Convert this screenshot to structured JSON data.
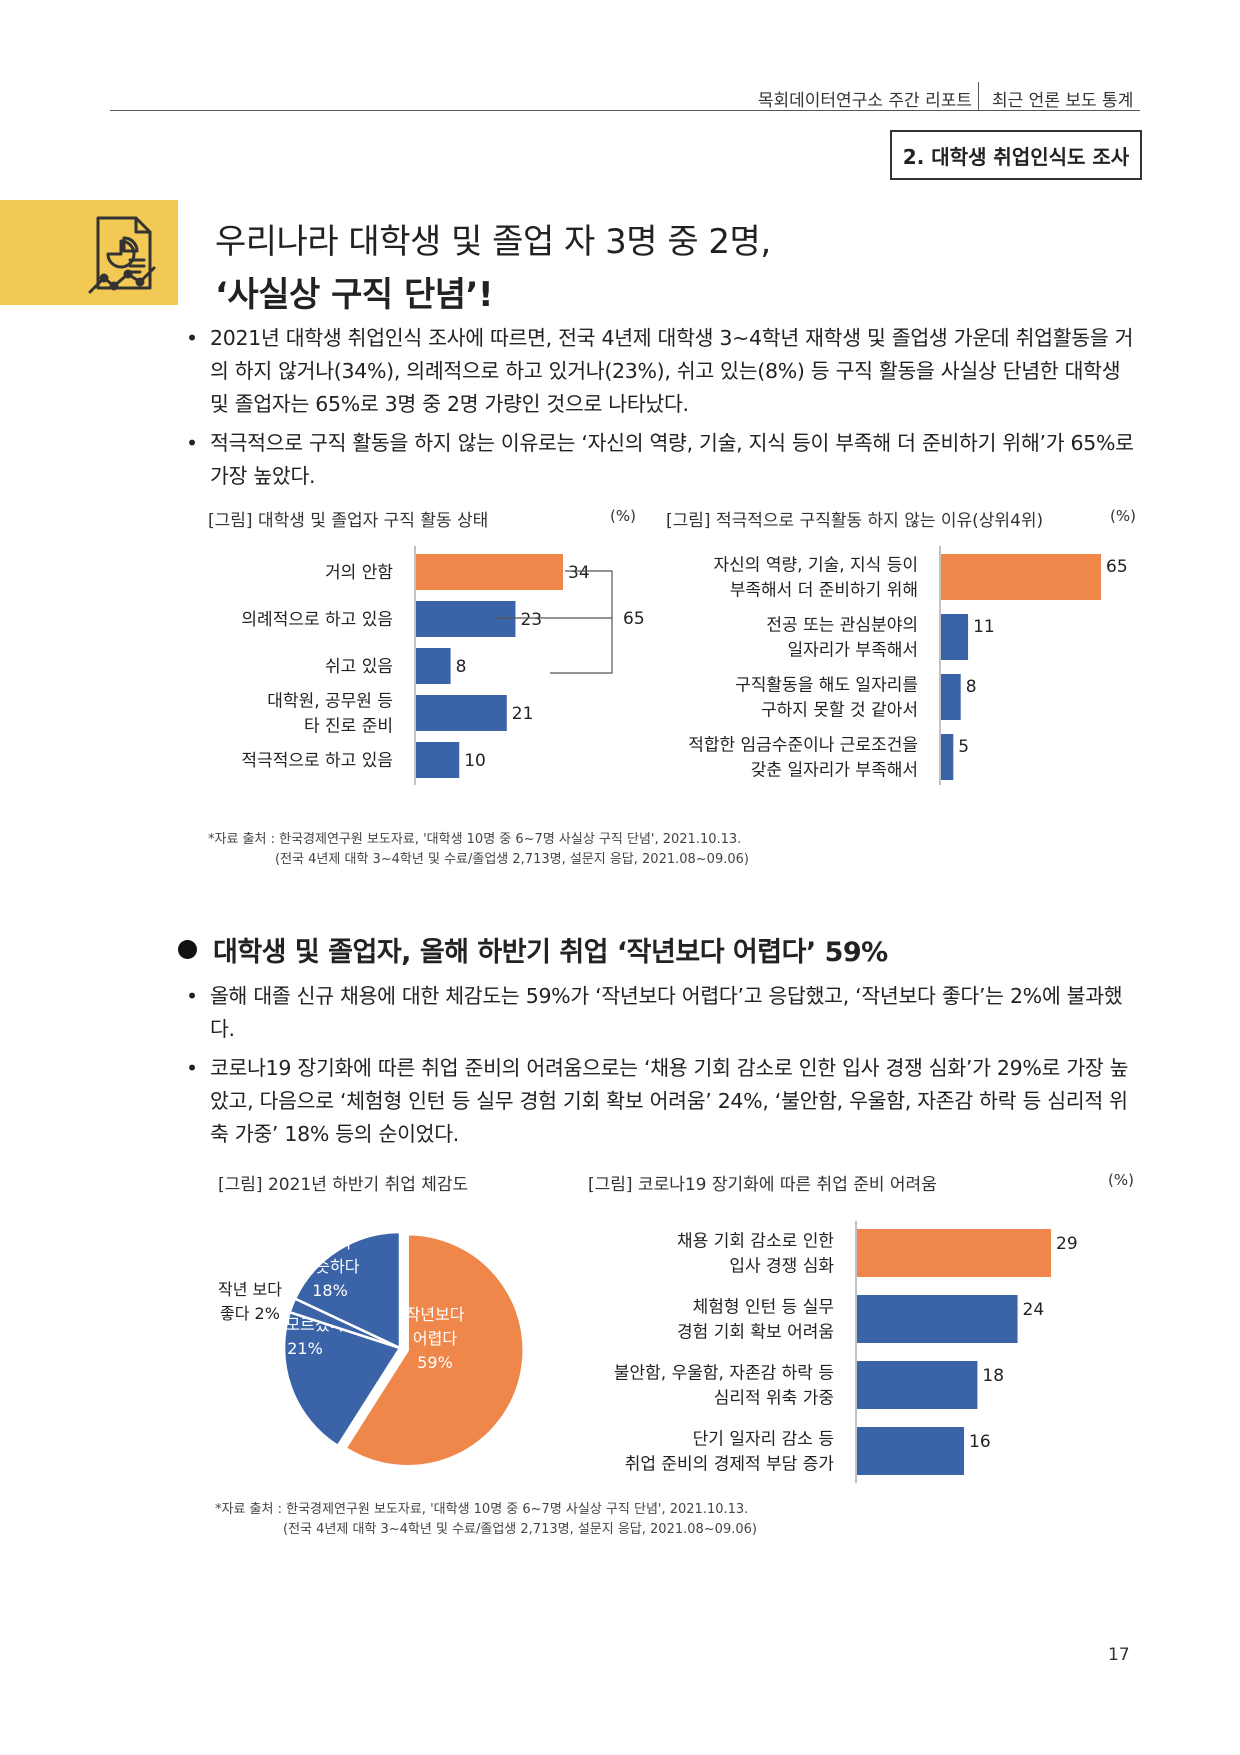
{
  "header": {
    "org": "목회데이터연구소 주간 리포트",
    "section": "최근 언론 보도 통계",
    "box_label": "2. 대학생 취업인식도 조사"
  },
  "title": {
    "icon": "chart-report-icon",
    "line1": "우리나라 대학생 및 졸업 자 3명 중 2명,",
    "line2": "‘사실상 구직 단념’!"
  },
  "bullets1": [
    "2021년 대학생 취업인식 조사에 따르면, 전국 4년제 대학생 3~4학년 재학생 및 졸업생 가운데 취업활동을 거의 하지 않거나(34%), 의례적으로 하고 있거나(23%), 쉬고 있는(8%) 등 구직 활동을 사실상 단념한 대학생 및 졸업자는 65%로 3명 중 2명 가량인 것으로 나타났다.",
    "적극적으로 구직 활동을 하지 않는 이유로는 ‘자신의 역량, 기술, 지식 등이 부족해 더 준비하기 위해’가 65%로 가장 높았다."
  ],
  "chart1": {
    "title": "[그림] 대학생 및 졸업자 구직 활동 상태",
    "unit": "(%)",
    "bracket_total": "65"
  },
  "chart2": {
    "title": "[그림] 적극적으로 구직활동 하지 않는 이유(상위4위)",
    "unit": "(%)"
  },
  "source1": {
    "line1": "*자료 출처 : 한국경제연구원 보도자료, '대학생 10명 중 6~7명 사실상 구직 단념', 2021.10.13.",
    "line2": "(전국 4년제 대학 3~4학년 및 수료/졸업생 2,713명, 설문지 응답, 2021.08~09.06)"
  },
  "subhead": "대학생 및 졸업자, 올해 하반기 취업 ‘작년보다 어렵다’ 59%",
  "bullets2": [
    "올해 대졸 신규 채용에 대한 체감도는 59%가 ‘작년보다 어렵다’고 응답했고, ‘작년보다 좋다’는 2%에 불과했다.",
    "코로나19 장기화에 따른 취업 준비의 어려움으로는 ‘채용 기회 감소로 인한 입사 경쟁 심화’가 29%로 가장 높았고, 다음으로 ‘체험형 인턴 등 실무 경험 기회 확보 어려움’ 24%, ‘불안함, 우울함, 자존감 하락 등 심리적 위축 가중’ 18% 등의 순이었다."
  ],
  "chart3": {
    "title": "[그림] 2021년 하반기 취업 체감도"
  },
  "chart4": {
    "title": "[그림] 코로나19 장기화에 따른 취업 준비 어려움",
    "unit": "(%)"
  },
  "source2": {
    "line1": "*자료 출처 : 한국경제연구원 보도자료, '대학생 10명 중 6~7명 사실상 구직 단념', 2021.10.13.",
    "line2": "(전국 4년제 대학 3~4학년 및 수료/졸업생 2,713명, 설문지 응답, 2021.08~09.06)"
  },
  "page_number": "17",
  "colors": {
    "orange": "#f0874a",
    "blue": "#3b64a8",
    "band": "#f3c955"
  },
  "chart_data": [
    {
      "type": "bar",
      "orientation": "horizontal",
      "title": "[그림] 대학생 및 졸업자 구직 활동 상태",
      "unit": "(%)",
      "categories": [
        [
          "거의 안함"
        ],
        [
          "의례적으로 하고 있음"
        ],
        [
          "쉬고 있음"
        ],
        [
          "대학원, 공무원 등",
          "타 진로 준비"
        ],
        [
          "적극적으로 하고 있음"
        ]
      ],
      "values": [
        34,
        23,
        8,
        21,
        10
      ],
      "highlight": [
        true,
        false,
        false,
        false,
        false
      ],
      "max": 34
    },
    {
      "type": "bar",
      "orientation": "horizontal",
      "title": "[그림] 적극적으로 구직활동 하지 않는 이유(상위4위)",
      "unit": "(%)",
      "categories": [
        [
          "자신의 역량, 기술, 지식 등이",
          "부족해서 더 준비하기 위해"
        ],
        [
          "전공 또는 관심분야의",
          "일자리가 부족해서"
        ],
        [
          "구직활동을 해도 일자리를",
          "구하지 못할 것 같아서"
        ],
        [
          "적합한 임금수준이나 근로조건을",
          "갖춘 일자리가 부족해서"
        ]
      ],
      "values": [
        65,
        11,
        8,
        5
      ],
      "highlight": [
        true,
        false,
        false,
        false
      ],
      "max": 65
    },
    {
      "type": "pie",
      "title": "[그림] 2021년 하반기 취업 체감도",
      "slices": [
        {
          "label": [
            "작년보다",
            "어렵다",
            "59%"
          ],
          "value": 59,
          "color": "#f0874a"
        },
        {
          "label": [
            "잘 모르겠다",
            "21%"
          ],
          "value": 21,
          "color": "#3b64a8"
        },
        {
          "label": [
            "작년 보다",
            "좋다 2%"
          ],
          "value": 2,
          "color": "#3b64a8"
        },
        {
          "label": [
            "작년과",
            "비슷하다",
            "18%"
          ],
          "value": 18,
          "color": "#3b64a8"
        }
      ]
    },
    {
      "type": "bar",
      "orientation": "horizontal",
      "title": "[그림] 코로나19 장기화에 따른 취업 준비 어려움",
      "unit": "(%)",
      "categories": [
        [
          "채용 기회 감소로 인한",
          "입사 경쟁 심화"
        ],
        [
          "체험형 인턴 등 실무",
          "경험 기회 확보 어려움"
        ],
        [
          "불안함, 우울함, 자존감 하락 등",
          "심리적 위축 가중"
        ],
        [
          "단기 일자리 감소 등",
          "취업 준비의 경제적 부담 증가"
        ]
      ],
      "values": [
        29,
        24,
        18,
        16
      ],
      "highlight": [
        true,
        false,
        false,
        false
      ],
      "max": 29
    }
  ]
}
